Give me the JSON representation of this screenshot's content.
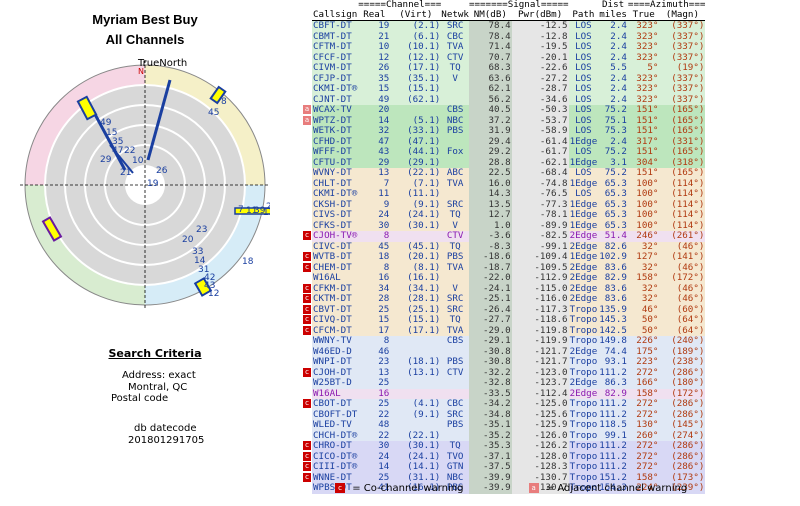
{
  "title_line1": "Myriam Best Buy",
  "title_line2": "All Channels",
  "radar": {
    "north_label": "TrueNorth",
    "n_label": "N",
    "labels": [
      "8",
      "45",
      "49",
      "15",
      "35",
      "47",
      "22",
      "29",
      "10",
      "21",
      "26",
      "19",
      "7",
      "11",
      "39",
      "13",
      "24",
      "20",
      "33",
      "14",
      "31",
      "42",
      "43",
      "12",
      "23",
      "18"
    ]
  },
  "criteria": {
    "title": "Search Criteria",
    "address_label": "Address: exact",
    "city": "Montral, QC",
    "postal_label": "Postal code",
    "datecode_label": "db datecode",
    "datecode": "201801291705"
  },
  "table": {
    "group_headers": {
      "channel": "Channel",
      "signal": "Signal",
      "dist": "Dist",
      "azimuth": "Azimuth"
    },
    "columns": [
      "Callsign",
      "Real",
      "(Virt)",
      "Netwk",
      "NM(dB)",
      "Pwr(dBm)",
      "Path",
      "miles",
      "True",
      "(Magn)"
    ],
    "rows": [
      {
        "call": "CBFT-DT",
        "real": "19",
        "virt": "(2.1)",
        "net": "SRC",
        "nm": "78.4",
        "pwr": "-12.5",
        "path": "LOS",
        "mi": "2.4",
        "tr": "323°",
        "mg": "(337°)",
        "w": "",
        "cls": "c-LOS"
      },
      {
        "call": "CBMT-DT",
        "real": "21",
        "virt": "(6.1)",
        "net": "CBC",
        "nm": "78.4",
        "pwr": "-12.8",
        "path": "LOS",
        "mi": "2.4",
        "tr": "323°",
        "mg": "(337°)",
        "w": "",
        "cls": "c-LOS"
      },
      {
        "call": "CFTM-DT",
        "real": "10",
        "virt": "(10.1)",
        "net": "TVA",
        "nm": "71.4",
        "pwr": "-19.5",
        "path": "LOS",
        "mi": "2.4",
        "tr": "323°",
        "mg": "(337°)",
        "w": "",
        "cls": "c-LOS"
      },
      {
        "call": "CFCF-DT",
        "real": "12",
        "virt": "(12.1)",
        "net": "CTV",
        "nm": "70.7",
        "pwr": "-20.1",
        "path": "LOS",
        "mi": "2.4",
        "tr": "323°",
        "mg": "(337°)",
        "w": "",
        "cls": "c-LOS"
      },
      {
        "call": "CIVM-DT",
        "real": "26",
        "virt": "(17.1)",
        "net": "TQ",
        "nm": "68.3",
        "pwr": "-22.6",
        "path": "LOS",
        "mi": "5.5",
        "tr": "5°",
        "mg": "(19°)",
        "w": "",
        "cls": "c-LOS"
      },
      {
        "call": "CFJP-DT",
        "real": "35",
        "virt": "(35.1)",
        "net": "V",
        "nm": "63.6",
        "pwr": "-27.2",
        "path": "LOS",
        "mi": "2.4",
        "tr": "323°",
        "mg": "(337°)",
        "w": "",
        "cls": "c-LOS"
      },
      {
        "call": "CKMI-DT®",
        "real": "15",
        "virt": "(15.1)",
        "net": "",
        "nm": "62.1",
        "pwr": "-28.7",
        "path": "LOS",
        "mi": "2.4",
        "tr": "323°",
        "mg": "(337°)",
        "w": "",
        "cls": "c-LOS"
      },
      {
        "call": "CJNT-DT",
        "real": "49",
        "virt": "(62.1)",
        "net": "",
        "nm": "56.2",
        "pwr": "-34.6",
        "path": "LOS",
        "mi": "2.4",
        "tr": "323°",
        "mg": "(337°)",
        "w": "",
        "cls": "c-LOS"
      },
      {
        "call": "WCAX-TV",
        "real": "20",
        "virt": "",
        "net": "CBS",
        "nm": "40.5",
        "pwr": "-50.3",
        "path": "LOS",
        "mi": "75.2",
        "tr": "151°",
        "mg": "(165°)",
        "w": "a",
        "cls": "c-LOS-b"
      },
      {
        "call": "WPTZ-DT",
        "real": "14",
        "virt": "(5.1)",
        "net": "NBC",
        "nm": "37.2",
        "pwr": "-53.7",
        "path": "LOS",
        "mi": "75.1",
        "tr": "151°",
        "mg": "(165°)",
        "w": "a",
        "cls": "c-LOS-b"
      },
      {
        "call": "WETK-DT",
        "real": "32",
        "virt": "(33.1)",
        "net": "PBS",
        "nm": "31.9",
        "pwr": "-58.9",
        "path": "LOS",
        "mi": "75.3",
        "tr": "151°",
        "mg": "(165°)",
        "w": "",
        "cls": "c-LOS-b"
      },
      {
        "call": "CFHD-DT",
        "real": "47",
        "virt": "(47.1)",
        "net": "",
        "nm": "29.4",
        "pwr": "-61.4",
        "path": "1Edge",
        "mi": "2.4",
        "tr": "317°",
        "mg": "(331°)",
        "w": "",
        "cls": "c-LOS-b"
      },
      {
        "call": "WFFF-DT",
        "real": "43",
        "virt": "(44.1)",
        "net": "Fox",
        "nm": "29.2",
        "pwr": "-61.7",
        "path": "LOS",
        "mi": "75.2",
        "tr": "151°",
        "mg": "(165°)",
        "w": "",
        "cls": "c-LOS-b"
      },
      {
        "call": "CFTU-DT",
        "real": "29",
        "virt": "(29.1)",
        "net": "",
        "nm": "28.8",
        "pwr": "-62.1",
        "path": "1Edge",
        "mi": "3.1",
        "tr": "304°",
        "mg": "(318°)",
        "w": "",
        "cls": "c-LOS-b"
      },
      {
        "call": "WVNY-DT",
        "real": "13",
        "virt": "(22.1)",
        "net": "ABC",
        "nm": "22.5",
        "pwr": "-68.4",
        "path": "LOS",
        "mi": "75.2",
        "tr": "151°",
        "mg": "(165°)",
        "w": "",
        "cls": "c-Edge"
      },
      {
        "call": "CHLT-DT",
        "real": "7",
        "virt": "(7.1)",
        "net": "TVA",
        "nm": "16.0",
        "pwr": "-74.8",
        "path": "1Edge",
        "mi": "65.3",
        "tr": "100°",
        "mg": "(114°)",
        "w": "",
        "cls": "c-Edge"
      },
      {
        "call": "CKMI-DT®",
        "real": "11",
        "virt": "(11.1)",
        "net": "",
        "nm": "14.3",
        "pwr": "-76.5",
        "path": "LOS",
        "mi": "65.3",
        "tr": "100°",
        "mg": "(114°)",
        "w": "",
        "cls": "c-Edge"
      },
      {
        "call": "CKSH-DT",
        "real": "9",
        "virt": "(9.1)",
        "net": "SRC",
        "nm": "13.5",
        "pwr": "-77.3",
        "path": "1Edge",
        "mi": "65.3",
        "tr": "100°",
        "mg": "(114°)",
        "w": "",
        "cls": "c-Edge"
      },
      {
        "call": "CIVS-DT",
        "real": "24",
        "virt": "(24.1)",
        "net": "TQ",
        "nm": "12.7",
        "pwr": "-78.1",
        "path": "1Edge",
        "mi": "65.3",
        "tr": "100°",
        "mg": "(114°)",
        "w": "",
        "cls": "c-Edge"
      },
      {
        "call": "CFKS-DT",
        "real": "30",
        "virt": "(30.1)",
        "net": "V",
        "nm": "1.0",
        "pwr": "-89.9",
        "path": "1Edge",
        "mi": "65.3",
        "tr": "100°",
        "mg": "(114°)",
        "w": "",
        "cls": "c-Edge"
      },
      {
        "call": "CJOH-TV®",
        "real": "8",
        "virt": "",
        "net": "CTV",
        "nm": "-3.6",
        "pwr": "-82.5",
        "path": "2Edge",
        "mi": "51.4",
        "tr": "246°",
        "mg": "(261°)",
        "w": "c",
        "cls": "c-Edge2",
        "purple": true
      },
      {
        "call": "CIVC-DT",
        "real": "45",
        "virt": "(45.1)",
        "net": "TQ",
        "nm": "-8.3",
        "pwr": "-99.1",
        "path": "2Edge",
        "mi": "82.6",
        "tr": "32°",
        "mg": "(46°)",
        "w": "",
        "cls": "c-Edge"
      },
      {
        "call": "WVTB-DT",
        "real": "18",
        "virt": "(20.1)",
        "net": "PBS",
        "nm": "-18.6",
        "pwr": "-109.4",
        "path": "1Edge",
        "mi": "102.9",
        "tr": "127°",
        "mg": "(141°)",
        "w": "c",
        "cls": "c-Edge"
      },
      {
        "call": "CHEM-DT",
        "real": "8",
        "virt": "(8.1)",
        "net": "TVA",
        "nm": "-18.7",
        "pwr": "-109.5",
        "path": "2Edge",
        "mi": "83.6",
        "tr": "32°",
        "mg": "(46°)",
        "w": "c",
        "cls": "c-Edge"
      },
      {
        "call": "W16AL",
        "real": "16",
        "virt": "(16.1)",
        "net": "",
        "nm": "-22.0",
        "pwr": "-112.9",
        "path": "2Edge",
        "mi": "82.9",
        "tr": "158°",
        "mg": "(172°)",
        "w": "",
        "cls": "c-Edge"
      },
      {
        "call": "CFKM-DT",
        "real": "34",
        "virt": "(34.1)",
        "net": "V",
        "nm": "-24.1",
        "pwr": "-115.0",
        "path": "2Edge",
        "mi": "83.6",
        "tr": "32°",
        "mg": "(46°)",
        "w": "c",
        "cls": "c-Edge"
      },
      {
        "call": "CKTM-DT",
        "real": "28",
        "virt": "(28.1)",
        "net": "SRC",
        "nm": "-25.1",
        "pwr": "-116.0",
        "path": "2Edge",
        "mi": "83.6",
        "tr": "32°",
        "mg": "(46°)",
        "w": "c",
        "cls": "c-Edge"
      },
      {
        "call": "CBVT-DT",
        "real": "25",
        "virt": "(25.1)",
        "net": "SRC",
        "nm": "-26.4",
        "pwr": "-117.3",
        "path": "Tropo",
        "mi": "135.9",
        "tr": "46°",
        "mg": "(60°)",
        "w": "c",
        "cls": "c-Edge"
      },
      {
        "call": "CIVQ-DT",
        "real": "15",
        "virt": "(15.1)",
        "net": "TQ",
        "nm": "-27.7",
        "pwr": "-118.6",
        "path": "Tropo",
        "mi": "145.3",
        "tr": "50°",
        "mg": "(64°)",
        "w": "c",
        "cls": "c-Edge"
      },
      {
        "call": "CFCM-DT",
        "real": "17",
        "virt": "(17.1)",
        "net": "TVA",
        "nm": "-29.0",
        "pwr": "-119.8",
        "path": "Tropo",
        "mi": "142.5",
        "tr": "50°",
        "mg": "(64°)",
        "w": "c",
        "cls": "c-Edge"
      },
      {
        "call": "WWNY-TV",
        "real": "8",
        "virt": "",
        "net": "CBS",
        "nm": "-29.1",
        "pwr": "-119.9",
        "path": "Tropo",
        "mi": "149.8",
        "tr": "226°",
        "mg": "(240°)",
        "w": "",
        "cls": "c-Tropo"
      },
      {
        "call": "W46ED-D",
        "real": "46",
        "virt": "",
        "net": "",
        "nm": "-30.8",
        "pwr": "-121.7",
        "path": "2Edge",
        "mi": "74.4",
        "tr": "175°",
        "mg": "(189°)",
        "w": "",
        "cls": "c-Tropo"
      },
      {
        "call": "WNPI-DT",
        "real": "23",
        "virt": "(18.1)",
        "net": "PBS",
        "nm": "-30.8",
        "pwr": "-121.7",
        "path": "Tropo",
        "mi": "93.1",
        "tr": "223°",
        "mg": "(238°)",
        "w": "",
        "cls": "c-Tropo"
      },
      {
        "call": "CJOH-DT",
        "real": "13",
        "virt": "(13.1)",
        "net": "CTV",
        "nm": "-32.2",
        "pwr": "-123.0",
        "path": "Tropo",
        "mi": "111.2",
        "tr": "272°",
        "mg": "(286°)",
        "w": "c",
        "cls": "c-Tropo"
      },
      {
        "call": "W25BT-D",
        "real": "25",
        "virt": "",
        "net": "",
        "nm": "-32.8",
        "pwr": "-123.7",
        "path": "2Edge",
        "mi": "86.3",
        "tr": "166°",
        "mg": "(180°)",
        "w": "",
        "cls": "c-Tropo"
      },
      {
        "call": "W16AL",
        "real": "16",
        "virt": "",
        "net": "",
        "nm": "-33.5",
        "pwr": "-112.4",
        "path": "2Edge",
        "mi": "82.9",
        "tr": "158°",
        "mg": "(172°)",
        "w": "",
        "cls": "c-Edge2",
        "purple": true
      },
      {
        "call": "CBOT-DT",
        "real": "25",
        "virt": "(4.1)",
        "net": "CBC",
        "nm": "-34.2",
        "pwr": "-125.0",
        "path": "Tropo",
        "mi": "111.2",
        "tr": "272°",
        "mg": "(286°)",
        "w": "c",
        "cls": "c-Tropo"
      },
      {
        "call": "CBOFT-DT",
        "real": "22",
        "virt": "(9.1)",
        "net": "SRC",
        "nm": "-34.8",
        "pwr": "-125.6",
        "path": "Tropo",
        "mi": "111.2",
        "tr": "272°",
        "mg": "(286°)",
        "w": "",
        "cls": "c-Tropo"
      },
      {
        "call": "WLED-TV",
        "real": "48",
        "virt": "",
        "net": "PBS",
        "nm": "-35.1",
        "pwr": "-125.9",
        "path": "Tropo",
        "mi": "118.5",
        "tr": "130°",
        "mg": "(145°)",
        "w": "",
        "cls": "c-Tropo"
      },
      {
        "call": "CHCH-DT®",
        "real": "22",
        "virt": "(22.1)",
        "net": "",
        "nm": "-35.2",
        "pwr": "-126.0",
        "path": "Tropo",
        "mi": "99.1",
        "tr": "260°",
        "mg": "(274°)",
        "w": "",
        "cls": "c-Tropo"
      },
      {
        "call": "CHRO-DT",
        "real": "30",
        "virt": "(30.1)",
        "net": "TQ",
        "nm": "-35.3",
        "pwr": "-126.2",
        "path": "Tropo",
        "mi": "111.2",
        "tr": "272°",
        "mg": "(286°)",
        "w": "c",
        "cls": "c-Tropo2"
      },
      {
        "call": "CICO-DT®",
        "real": "24",
        "virt": "(24.1)",
        "net": "TVO",
        "nm": "-37.1",
        "pwr": "-128.0",
        "path": "Tropo",
        "mi": "111.2",
        "tr": "272°",
        "mg": "(286°)",
        "w": "c",
        "cls": "c-Tropo2"
      },
      {
        "call": "CIII-DT®",
        "real": "14",
        "virt": "(14.1)",
        "net": "GTN",
        "nm": "-37.5",
        "pwr": "-128.3",
        "path": "Tropo",
        "mi": "111.2",
        "tr": "272°",
        "mg": "(286°)",
        "w": "c",
        "cls": "c-Tropo2"
      },
      {
        "call": "WNNE-DT",
        "real": "25",
        "virt": "(31.1)",
        "net": "NBC",
        "nm": "-39.9",
        "pwr": "-130.7",
        "path": "Tropo",
        "mi": "151.2",
        "tr": "158°",
        "mg": "(173°)",
        "w": "c",
        "cls": "c-Tropo2"
      },
      {
        "call": "WPBS-DT",
        "real": "41",
        "virt": "(16.1)",
        "net": "PBS",
        "nm": "-39.9",
        "pwr": "-130.7",
        "path": "Tropo",
        "mi": "154.3",
        "tr": "224°",
        "mg": "(239°)",
        "w": "",
        "cls": "c-Tropo2"
      }
    ]
  },
  "legend": {
    "co_mark": "c",
    "co_label": "= Co-channel warning",
    "adj_mark": "a",
    "adj_label": "= Adjacent channel warning"
  },
  "colors": {
    "radial_line": "#1a3fa0",
    "highlight": "#ffff00",
    "ring": "#000000",
    "label": "#1a3fa0"
  }
}
